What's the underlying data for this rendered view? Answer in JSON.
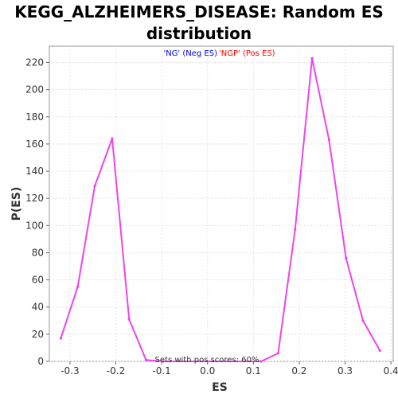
{
  "chart_data": {
    "type": "line",
    "title": "KEGG_ALZHEIMERS_DISEASE: Random ES distribution",
    "xlabel": "ES",
    "ylabel": "P(ES)",
    "xlim": [
      -0.345,
      0.405
    ],
    "ylim": [
      0,
      232
    ],
    "x_ticks": [
      -0.3,
      -0.2,
      -0.1,
      0.0,
      0.1,
      0.2,
      0.3,
      0.4
    ],
    "x_tick_labels": [
      "-0.3",
      "-0.2",
      "-0.1",
      "0.0",
      "0.1",
      "0.2",
      "0.3",
      "0.4"
    ],
    "y_ticks": [
      0,
      20,
      40,
      60,
      80,
      100,
      120,
      140,
      160,
      180,
      200,
      220
    ],
    "y_tick_labels": [
      "0",
      "20",
      "40",
      "60",
      "80",
      "100",
      "120",
      "140",
      "160",
      "180",
      "200",
      "220"
    ],
    "grid": true,
    "legend": {
      "placement": "top-center",
      "entries": [
        {
          "label": "'NG' (Neg ES)",
          "color": "#0000ff"
        },
        {
          "label": "'NGP' (Pos ES)",
          "color": "#ff0000"
        }
      ]
    },
    "annotation": "Sets with pos scores: 60%",
    "series": [
      {
        "color": "#ee44ee",
        "x": [
          -0.32,
          -0.283,
          -0.246,
          -0.208,
          -0.171,
          -0.134,
          -0.097,
          0.117,
          0.154,
          0.191,
          0.228,
          0.265,
          0.302,
          0.339,
          0.376
        ],
        "y": [
          17,
          55,
          129,
          164,
          31,
          1,
          0,
          0,
          6,
          97,
          223,
          163,
          76,
          30,
          8
        ]
      }
    ]
  }
}
